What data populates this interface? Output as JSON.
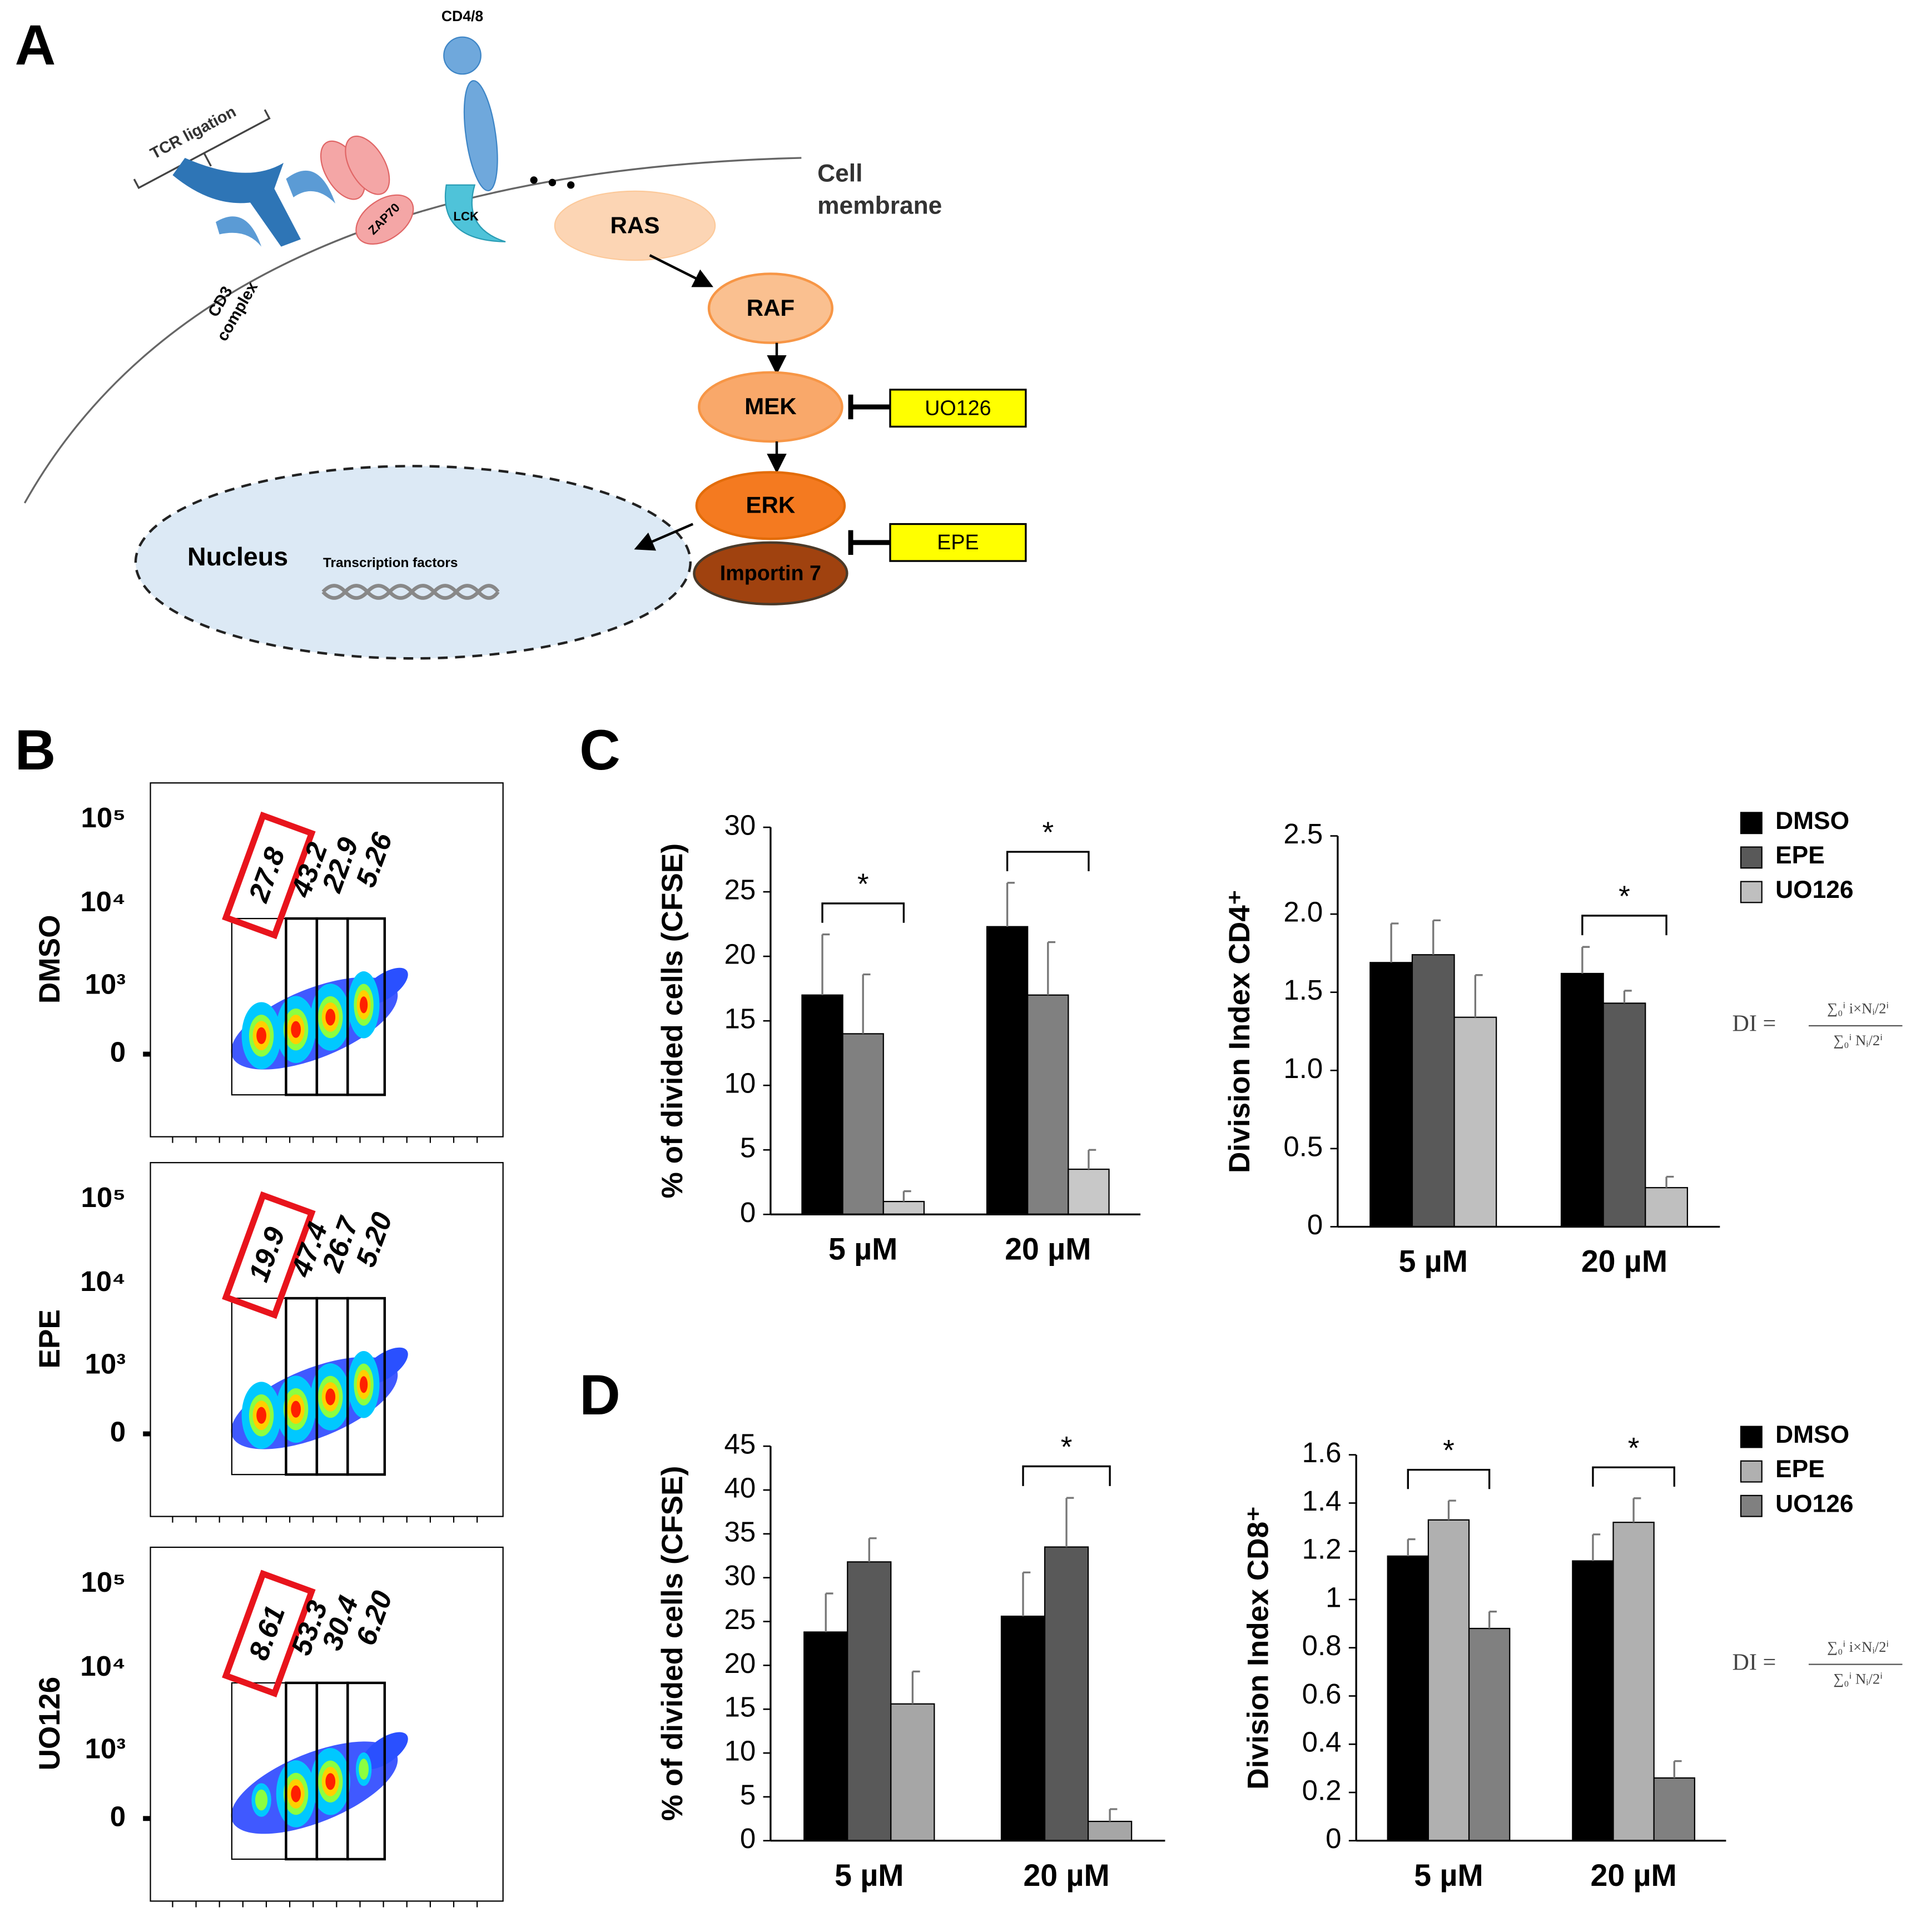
{
  "panel_labels": [
    "A",
    "B",
    "C",
    "D"
  ],
  "pathway": {
    "tcr": "TCR ligation",
    "cd48": "CD4/8",
    "zap70": "ZAP70",
    "lck": "LCK",
    "cd3": [
      "CD3",
      "complex"
    ],
    "membrane": [
      "Cell",
      "membrane"
    ],
    "ras": "RAS",
    "raf": "RAF",
    "mek": "MEK",
    "erk": "ERK",
    "importin": "Importin 7",
    "inhibitors": [
      "UO126",
      "EPE"
    ],
    "nucleus": "Nucleus",
    "tf": "Transcription factors"
  },
  "flow": {
    "yticks": [
      "10⁵",
      "10⁴",
      "10³",
      "0"
    ],
    "rows": [
      {
        "label": "DMSO",
        "gates": [
          "27.8",
          "43.2",
          "22.9",
          "5.26"
        ]
      },
      {
        "label": "EPE",
        "gates": [
          "19.9",
          "47.4",
          "26.7",
          "5.20"
        ]
      },
      {
        "label": "UO126",
        "gates": [
          "8.61",
          "53.3",
          "30.4",
          "6.20"
        ]
      }
    ]
  },
  "formula": {
    "lhs": "DI =",
    "numerator": "∑₀ⁱ i×Nᵢ/2ⁱ",
    "denominator": "∑₀ⁱ Nᵢ/2ⁱ"
  },
  "chart_data": [
    {
      "type": "bar",
      "ylabel": "% of divided cells (CFSE)",
      "categories": [
        "5 µM",
        "20 µM"
      ],
      "series": [
        {
          "color": "#000000",
          "values": [
            17,
            22.3
          ],
          "errors": [
            4.7,
            3.4
          ]
        },
        {
          "color": "#808080",
          "values": [
            14,
            17
          ],
          "errors": [
            4.6,
            4.1
          ]
        },
        {
          "color": "#c8c8c8",
          "values": [
            1,
            3.5
          ],
          "errors": [
            0.8,
            1.5
          ]
        }
      ],
      "ylim": [
        0,
        30
      ],
      "yticks": [
        0,
        5,
        10,
        15,
        20,
        25,
        30
      ],
      "annotations": [
        {
          "text": "*",
          "category": 0
        },
        {
          "text": "*",
          "category": 1
        }
      ]
    },
    {
      "type": "bar",
      "ylabel": "Division Index CD4⁺",
      "categories": [
        "5 µM",
        "20 µM"
      ],
      "series": [
        {
          "name": "DMSO",
          "color": "#000000",
          "values": [
            1.69,
            1.62
          ],
          "errors": [
            0.25,
            0.17
          ]
        },
        {
          "name": "EPE",
          "color": "#595959",
          "values": [
            1.74,
            1.43
          ],
          "errors": [
            0.22,
            0.08
          ]
        },
        {
          "name": "UO126",
          "color": "#bfbfbf",
          "values": [
            1.34,
            0.25
          ],
          "errors": [
            0.27,
            0.07
          ]
        }
      ],
      "ylim": [
        0,
        2.5
      ],
      "yticks": [
        0,
        0.5,
        {
          "value": 1,
          "label": "1.0"
        },
        1.5,
        {
          "value": 2,
          "label": "2.0"
        },
        2.5
      ],
      "legend": "right",
      "annotations": [
        {
          "text": "*",
          "category": 1
        }
      ]
    },
    {
      "type": "bar",
      "ylabel": "% of divided cells (CFSE)",
      "categories": [
        "5 µM",
        "20 µM"
      ],
      "series": [
        {
          "color": "#000000",
          "values": [
            23.8,
            25.6
          ],
          "errors": [
            4.4,
            5
          ]
        },
        {
          "color": "#595959",
          "values": [
            31.8,
            33.5
          ],
          "errors": [
            2.7,
            5.6
          ]
        },
        {
          "color": "#a6a6a6",
          "values": [
            15.6,
            2.2
          ],
          "errors": [
            3.7,
            1.4
          ]
        }
      ],
      "ylim": [
        0,
        45
      ],
      "yticks": [
        0,
        5,
        10,
        15,
        20,
        25,
        30,
        35,
        40,
        45
      ],
      "annotations": [
        {
          "text": "*",
          "category": 1
        }
      ]
    },
    {
      "type": "bar",
      "ylabel": "Division Index CD8⁺",
      "categories": [
        "5 µM",
        "20 µM"
      ],
      "series": [
        {
          "name": "DMSO",
          "color": "#000000",
          "values": [
            1.18,
            1.16
          ],
          "errors": [
            0.07,
            0.11
          ]
        },
        {
          "name": "EPE",
          "color": "#b0b0b0",
          "values": [
            1.33,
            1.32
          ],
          "errors": [
            0.08,
            0.1
          ]
        },
        {
          "name": "UO126",
          "color": "#808080",
          "values": [
            0.88,
            0.26
          ],
          "errors": [
            0.07,
            0.07
          ]
        }
      ],
      "ylim": [
        0,
        1.6
      ],
      "yticks": [
        0,
        0.2,
        0.4,
        0.6,
        0.8,
        1,
        1.2,
        1.4,
        1.6
      ],
      "legend": "right",
      "annotations": [
        {
          "text": "*",
          "category": 0
        },
        {
          "text": "*",
          "category": 1
        }
      ]
    }
  ]
}
